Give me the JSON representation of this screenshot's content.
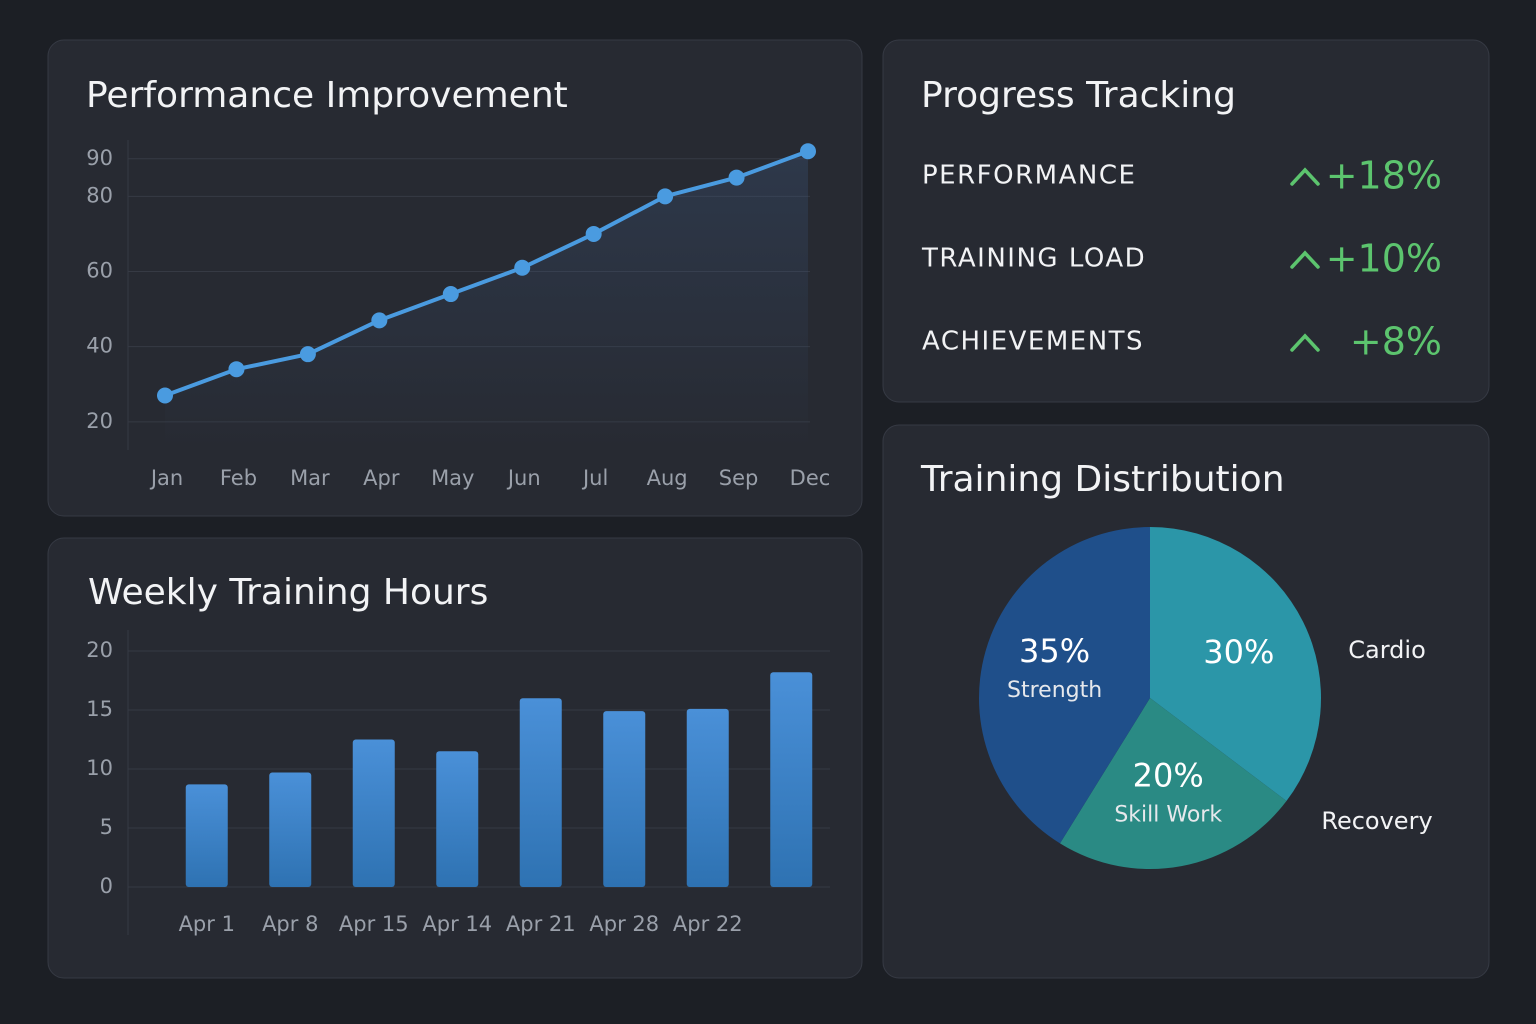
{
  "chart_data": [
    {
      "type": "line",
      "title": "Performance Improvement",
      "categories": [
        "Jan",
        "Feb",
        "Mar",
        "Apr",
        "May",
        "Jun",
        "Jul",
        "Aug",
        "Sep",
        "Dec"
      ],
      "values": [
        27,
        34,
        38,
        47,
        54,
        61,
        70,
        80,
        85,
        92
      ],
      "color": "#4a9be0",
      "ylim": [
        12.5,
        95
      ],
      "yticks": [
        90,
        80,
        60,
        40,
        20
      ],
      "grid": true
    },
    {
      "type": "bar",
      "title": "Weekly Training Hours",
      "categories": [
        "Apr 1",
        "Apr 8",
        "Apr 15",
        "Apr 14",
        "Apr 21",
        "Apr 28",
        "Apr 22",
        null
      ],
      "values": [
        8.7,
        9.7,
        12.5,
        11.5,
        16,
        14.9,
        15.1,
        18.2
      ],
      "color": "#3f86cc",
      "ylim": [
        0,
        20
      ],
      "yticks": [
        20,
        15,
        10,
        5,
        0
      ],
      "grid": true
    },
    {
      "type": "pie",
      "title": "Training Distribution",
      "categories": [
        "Cardio",
        "Skill Work",
        "Strength",
        "Recovery"
      ],
      "values": [
        30,
        20,
        35,
        null
      ],
      "value_labels": [
        "30%",
        "20%",
        "35%",
        null
      ],
      "colors": [
        "#2b96a8",
        "#2a8a84",
        "#1f4f8a",
        "#3a6fa0"
      ]
    }
  ],
  "progress": {
    "title": "Progress Tracking",
    "items": [
      {
        "label": "PERFORMANCE",
        "value": "+18%"
      },
      {
        "label": "TRAINING LOAD",
        "value": "+10%"
      },
      {
        "label": "ACHIEVEMENTS",
        "value": "+8%"
      }
    ]
  }
}
